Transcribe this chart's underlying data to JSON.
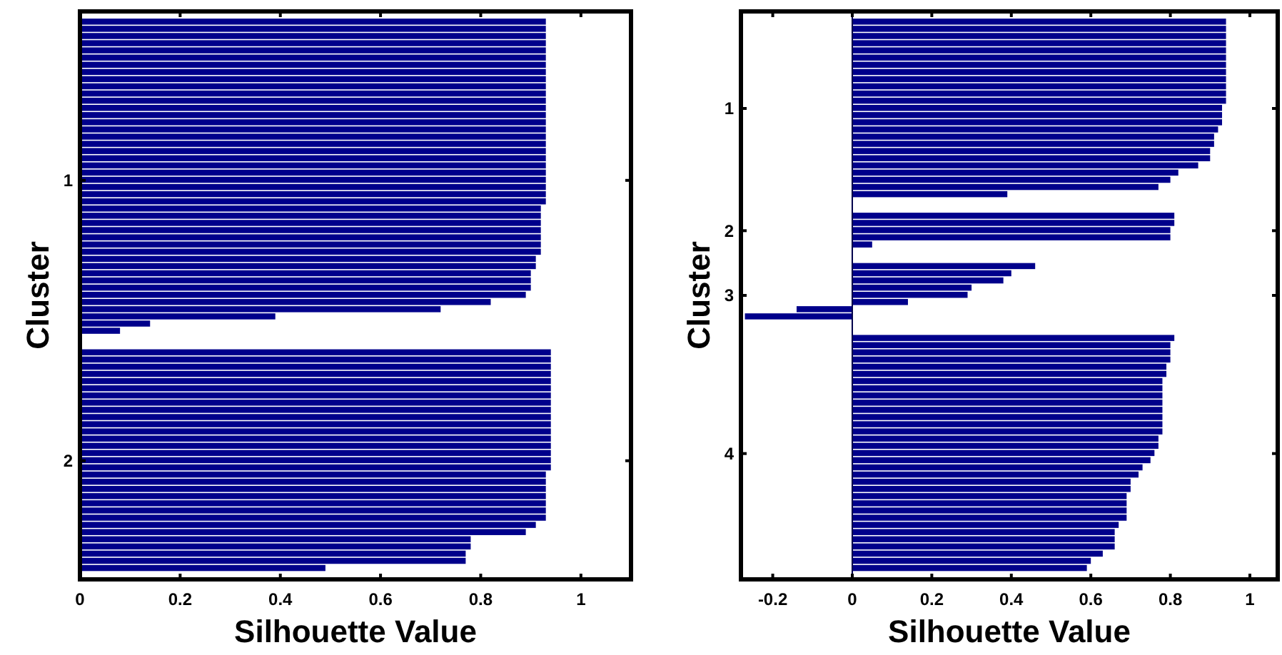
{
  "chart_data": [
    {
      "type": "bar",
      "orientation": "horizontal",
      "xlabel": "Silhouette Value",
      "ylabel": "Cluster",
      "color": "#00008b",
      "xlim": [
        0,
        1.1
      ],
      "xticks": [
        0,
        0.2,
        0.4,
        0.6,
        0.8,
        1
      ],
      "categories": [
        null,
        null,
        null,
        null,
        null,
        null,
        null,
        null,
        null,
        null,
        null,
        null,
        null,
        null,
        null,
        null,
        null,
        null,
        null,
        null,
        null,
        null,
        null,
        "1",
        null,
        null,
        null,
        null,
        null,
        null,
        null,
        null,
        null,
        null,
        null,
        null,
        null,
        null,
        null,
        null,
        null,
        null,
        null,
        null,
        null,
        null,
        null,
        null,
        null,
        null,
        null,
        null,
        null,
        null,
        null,
        null,
        null,
        null,
        null,
        null,
        null,
        null,
        "2",
        null,
        null,
        null,
        null,
        null,
        null,
        null,
        null,
        null,
        null,
        null,
        null,
        null,
        null,
        null,
        null
      ],
      "values": [
        null,
        0.93,
        0.93,
        0.93,
        0.93,
        0.93,
        0.93,
        0.93,
        0.93,
        0.93,
        0.93,
        0.93,
        0.93,
        0.93,
        0.93,
        0.93,
        0.93,
        0.93,
        0.93,
        0.93,
        0.93,
        0.93,
        0.93,
        0.93,
        0.93,
        0.93,
        0.93,
        0.92,
        0.92,
        0.92,
        0.92,
        0.92,
        0.92,
        0.92,
        0.91,
        0.91,
        0.9,
        0.9,
        0.9,
        0.89,
        0.82,
        0.72,
        0.39,
        0.14,
        0.08,
        null,
        null,
        0.94,
        0.94,
        0.94,
        0.94,
        0.94,
        0.94,
        0.94,
        0.94,
        0.94,
        0.94,
        0.94,
        0.94,
        0.94,
        0.94,
        0.94,
        0.94,
        0.94,
        0.93,
        0.93,
        0.93,
        0.93,
        0.93,
        0.93,
        0.93,
        0.91,
        0.89,
        0.78,
        0.78,
        0.77,
        0.77,
        0.49,
        null
      ]
    },
    {
      "type": "bar",
      "orientation": "horizontal",
      "xlabel": "Silhouette Value",
      "ylabel": "Cluster",
      "color": "#00008b",
      "xlim": [
        -0.28,
        1.07
      ],
      "xticks": [
        -0.2,
        0,
        0.2,
        0.4,
        0.6,
        0.8,
        1
      ],
      "ref_lines": [
        {
          "axis": "x",
          "value": 0,
          "color": "#00004a"
        }
      ],
      "categories": [
        null,
        null,
        null,
        null,
        null,
        null,
        null,
        null,
        null,
        null,
        null,
        null,
        null,
        "1",
        null,
        null,
        null,
        null,
        null,
        null,
        null,
        null,
        null,
        null,
        null,
        null,
        null,
        null,
        null,
        null,
        "2",
        null,
        null,
        null,
        null,
        null,
        null,
        null,
        null,
        "3",
        null,
        null,
        null,
        null,
        null,
        null,
        null,
        null,
        null,
        null,
        null,
        null,
        null,
        null,
        null,
        null,
        null,
        null,
        null,
        null,
        null,
        "4",
        null,
        null,
        null,
        null,
        null,
        null,
        null,
        null,
        null,
        null,
        null,
        null,
        null,
        null,
        null,
        null,
        null
      ],
      "values": [
        null,
        0.94,
        0.94,
        0.94,
        0.94,
        0.94,
        0.94,
        0.94,
        0.94,
        0.94,
        0.94,
        0.94,
        0.94,
        0.93,
        0.93,
        0.93,
        0.92,
        0.91,
        0.91,
        0.9,
        0.9,
        0.87,
        0.82,
        0.8,
        0.77,
        0.39,
        null,
        null,
        0.81,
        0.81,
        0.8,
        0.8,
        0.05,
        null,
        null,
        0.46,
        0.4,
        0.38,
        0.3,
        0.29,
        0.14,
        -0.14,
        -0.27,
        null,
        null,
        0.81,
        0.8,
        0.8,
        0.8,
        0.79,
        0.79,
        0.78,
        0.78,
        0.78,
        0.78,
        0.78,
        0.78,
        0.78,
        0.78,
        0.77,
        0.77,
        0.76,
        0.75,
        0.73,
        0.72,
        0.7,
        0.7,
        0.69,
        0.69,
        0.69,
        0.69,
        0.67,
        0.66,
        0.66,
        0.66,
        0.63,
        0.6,
        0.59,
        null
      ]
    }
  ]
}
